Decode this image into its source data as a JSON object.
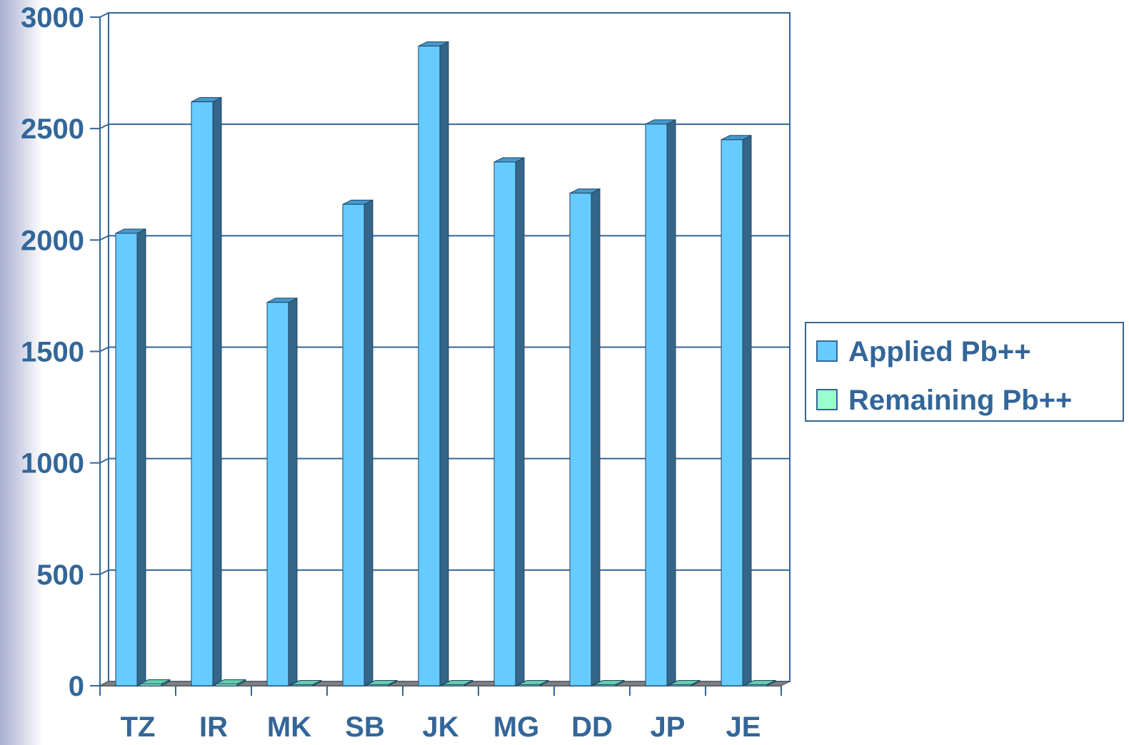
{
  "chart_data": {
    "type": "bar",
    "categories": [
      "TZ",
      "IR",
      "MK",
      "SB",
      "JK",
      "MG",
      "DD",
      "JP",
      "JE"
    ],
    "series": [
      {
        "name": "Applied Pb++",
        "values": [
          2030,
          2620,
          1720,
          2160,
          2870,
          2350,
          2210,
          2520,
          2450
        ],
        "color": "#66ccff"
      },
      {
        "name": "Remaining Pb++",
        "values": [
          8,
          8,
          5,
          5,
          5,
          5,
          5,
          5,
          5
        ],
        "color": "#99ffcc"
      }
    ],
    "yticks": [
      0,
      500,
      1000,
      1500,
      2000,
      2500,
      3000
    ],
    "ylim": [
      0,
      3000
    ],
    "grid": true,
    "legend_position": "right",
    "title": "",
    "xlabel": "",
    "ylabel": "",
    "colors": {
      "axis": "#336699",
      "gridline": "#336699",
      "floor": "#808080",
      "bar_side": "#336688",
      "bar_top": "#4499cc",
      "label": "#336699"
    }
  }
}
